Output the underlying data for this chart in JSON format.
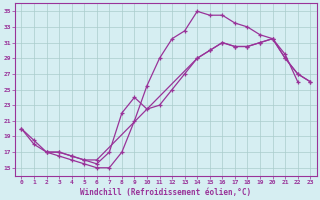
{
  "xlabel": "Windchill (Refroidissement éolien,°C)",
  "bg_color": "#d6eef2",
  "grid_color": "#aacccc",
  "line_color": "#993399",
  "yticks": [
    15,
    17,
    19,
    21,
    23,
    25,
    27,
    29,
    31,
    33,
    35
  ],
  "xticks": [
    0,
    1,
    2,
    3,
    4,
    5,
    6,
    7,
    8,
    9,
    10,
    11,
    12,
    13,
    14,
    15,
    16,
    17,
    18,
    19,
    20,
    21,
    22,
    23
  ],
  "line1_x": [
    0,
    1,
    2,
    3,
    4,
    5,
    6,
    7,
    8,
    9,
    10,
    11,
    12,
    13,
    14,
    15,
    16,
    17,
    18,
    19,
    20,
    21,
    22
  ],
  "line1_y": [
    20,
    18,
    17,
    16.5,
    16,
    15.5,
    15,
    15,
    17,
    21,
    25.5,
    29,
    31.5,
    32.5,
    35,
    34.5,
    34.5,
    33.5,
    33,
    32,
    31.5,
    29.5,
    26
  ],
  "line2_x": [
    0,
    1,
    2,
    3,
    4,
    5,
    6,
    7,
    8,
    9,
    10,
    11,
    12,
    13,
    14,
    15,
    16,
    17,
    18,
    19,
    20,
    21,
    22,
    23
  ],
  "line2_y": [
    20,
    18.5,
    17,
    17,
    16.5,
    16,
    15.5,
    17,
    22,
    24,
    22.5,
    23,
    25,
    27,
    29,
    30,
    31,
    30.5,
    30.5,
    31,
    31.5,
    29,
    27,
    26
  ],
  "line3_x": [
    2,
    3,
    4,
    5,
    6,
    14,
    15,
    16,
    17,
    18,
    19,
    20,
    21,
    22,
    23
  ],
  "line3_y": [
    17,
    17,
    16.5,
    16,
    16,
    29,
    30,
    31,
    30.5,
    30.5,
    31,
    31.5,
    29,
    27,
    26
  ]
}
